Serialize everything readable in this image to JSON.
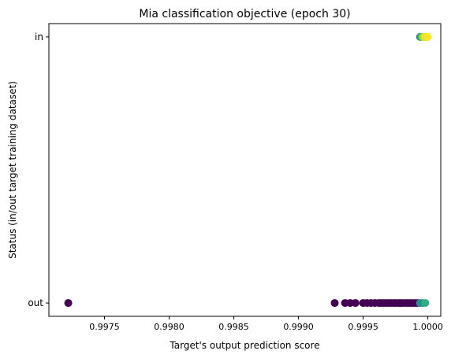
{
  "chart_data": {
    "type": "scatter",
    "title": "Mia classification objective (epoch 30)",
    "xlabel": "Target's output prediction score",
    "ylabel": "Status (in/out target training dataset)",
    "xlim": [
      0.99707,
      1.0001
    ],
    "ylim": [
      -0.05,
      1.05
    ],
    "x_ticks": [
      {
        "value": 0.9975,
        "label": "0.9975"
      },
      {
        "value": 0.998,
        "label": "0.9980"
      },
      {
        "value": 0.9985,
        "label": "0.9985"
      },
      {
        "value": 0.999,
        "label": "0.9990"
      },
      {
        "value": 0.9995,
        "label": "0.9995"
      },
      {
        "value": 1.0,
        "label": "1.0000"
      }
    ],
    "y_ticks": [
      {
        "value": 0,
        "label": "out"
      },
      {
        "value": 1,
        "label": "in"
      }
    ],
    "grid": false,
    "colormap": "viridis",
    "colors": {
      "low": "#440154",
      "mid_low": "#31688e",
      "mid": "#21918c",
      "mid_high": "#35b779",
      "high": "#90d743",
      "top": "#fde725"
    },
    "points": [
      {
        "x": 0.99722,
        "y": 0,
        "c": 0.0
      },
      {
        "x": 0.99928,
        "y": 0,
        "c": 0.0
      },
      {
        "x": 0.99936,
        "y": 0,
        "c": 0.0
      },
      {
        "x": 0.9994,
        "y": 0,
        "c": 0.0
      },
      {
        "x": 0.99944,
        "y": 0,
        "c": 0.0
      },
      {
        "x": 0.9995,
        "y": 0,
        "c": 0.0
      },
      {
        "x": 0.99953,
        "y": 0,
        "c": 0.0
      },
      {
        "x": 0.99956,
        "y": 0,
        "c": 0.0
      },
      {
        "x": 0.99959,
        "y": 0,
        "c": 0.0
      },
      {
        "x": 0.99962,
        "y": 0,
        "c": 0.0
      },
      {
        "x": 0.99964,
        "y": 0,
        "c": 0.0
      },
      {
        "x": 0.99966,
        "y": 0,
        "c": 0.0
      },
      {
        "x": 0.99968,
        "y": 0,
        "c": 0.0
      },
      {
        "x": 0.9997,
        "y": 0,
        "c": 0.0
      },
      {
        "x": 0.99972,
        "y": 0,
        "c": 0.0
      },
      {
        "x": 0.99974,
        "y": 0,
        "c": 0.0
      },
      {
        "x": 0.99976,
        "y": 0,
        "c": 0.0
      },
      {
        "x": 0.99978,
        "y": 0,
        "c": 0.0
      },
      {
        "x": 0.9998,
        "y": 0,
        "c": 0.0
      },
      {
        "x": 0.99982,
        "y": 0,
        "c": 0.0
      },
      {
        "x": 0.99984,
        "y": 0,
        "c": 0.0
      },
      {
        "x": 0.99986,
        "y": 0,
        "c": 0.0
      },
      {
        "x": 0.99988,
        "y": 0,
        "c": 0.0
      },
      {
        "x": 0.9999,
        "y": 0,
        "c": 0.0
      },
      {
        "x": 0.99992,
        "y": 0,
        "c": 0.0
      },
      {
        "x": 0.99994,
        "y": 0,
        "c": 0.45
      },
      {
        "x": 0.99996,
        "y": 0,
        "c": 0.45
      },
      {
        "x": 0.99998,
        "y": 0,
        "c": 0.6
      },
      {
        "x": 0.99994,
        "y": 1,
        "c": 0.45
      },
      {
        "x": 0.99995,
        "y": 1,
        "c": 0.6
      },
      {
        "x": 0.99996,
        "y": 1,
        "c": 0.85
      },
      {
        "x": 0.99997,
        "y": 1,
        "c": 0.9
      },
      {
        "x": 0.99998,
        "y": 1,
        "c": 1.0
      },
      {
        "x": 0.99999,
        "y": 1,
        "c": 0.95
      },
      {
        "x": 1.0,
        "y": 1,
        "c": 1.0
      }
    ]
  }
}
